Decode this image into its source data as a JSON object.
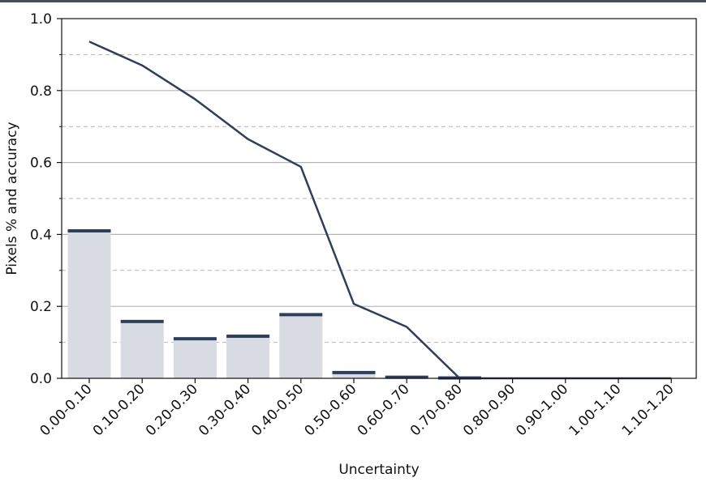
{
  "chart_data": {
    "type": "bar",
    "xlabel": "Uncertainty",
    "ylabel": "Pixels % and accuracy",
    "ylim": [
      0,
      1.0
    ],
    "yticks": [
      "0.0",
      "0.2",
      "0.4",
      "0.6",
      "0.8",
      "1.0"
    ],
    "categories": [
      "0.00-0.10",
      "0.10-0.20",
      "0.20-0.30",
      "0.30-0.40",
      "0.40-0.50",
      "0.50-0.60",
      "0.60-0.70",
      "0.70-0.80",
      "0.80-0.90",
      "0.90-1.00",
      "1.00-1.10",
      "1.10-1.20"
    ],
    "bar_values": [
      0.41,
      0.158,
      0.11,
      0.117,
      0.177,
      0.016,
      0.003,
      0.001,
      0.0,
      0.0,
      0.0,
      0.0
    ],
    "line_values": [
      0.936,
      0.87,
      0.776,
      0.665,
      0.588,
      0.207,
      0.143,
      0.0,
      0.0,
      0.0,
      0.0,
      0.0
    ],
    "grid": {
      "major": [
        0.2,
        0.4,
        0.6,
        0.8
      ],
      "minor_dashed": [
        0.1,
        0.3,
        0.5,
        0.7,
        0.9
      ]
    },
    "colors": {
      "bar": "#d9dbe3",
      "bar_cap": "#2e3f5c",
      "line": "#2e3f5c",
      "grid_major": "#b5b5b5",
      "grid_minor": "#b5b5b5"
    }
  }
}
